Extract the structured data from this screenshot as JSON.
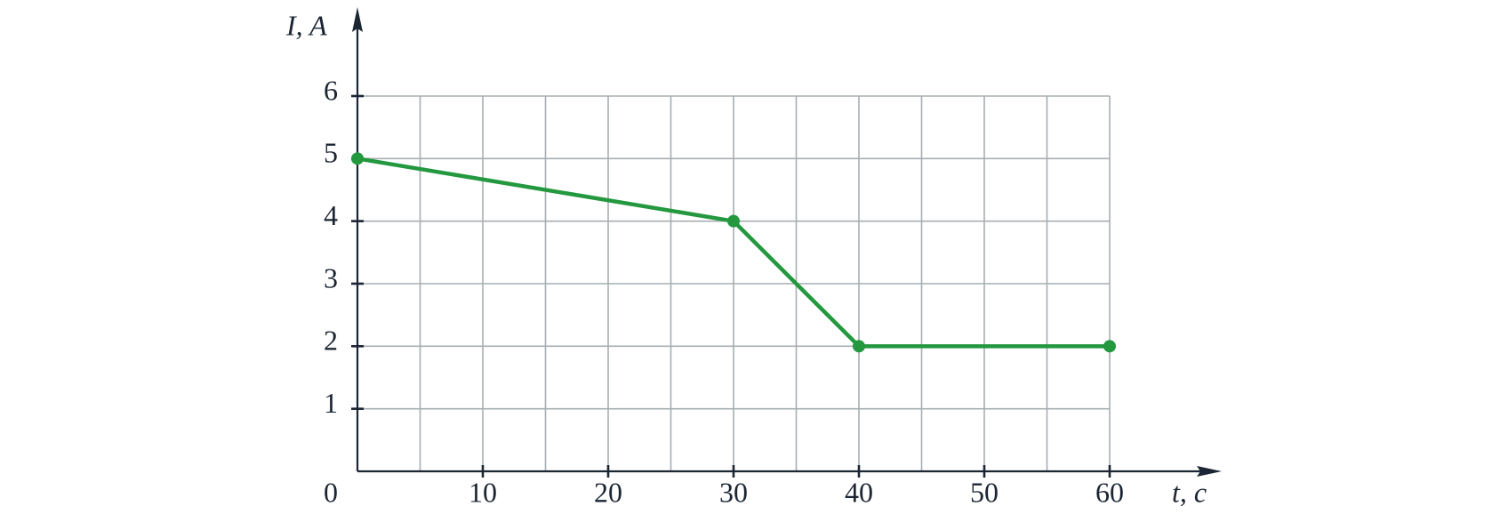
{
  "chart_data": {
    "type": "line",
    "xlabel": "t, c",
    "ylabel": "I, A",
    "x": [
      0,
      30,
      40,
      60
    ],
    "series": [
      {
        "color": "#23983f",
        "values": [
          5,
          4,
          2,
          2
        ]
      }
    ],
    "xlim": [
      0,
      60
    ],
    "xticks": [
      0,
      10,
      20,
      30,
      40,
      50,
      60
    ],
    "ylim": [
      0,
      6
    ],
    "yticks": [
      1,
      2,
      3,
      4,
      5,
      6
    ],
    "grid": true,
    "xgrid_step": 5
  }
}
